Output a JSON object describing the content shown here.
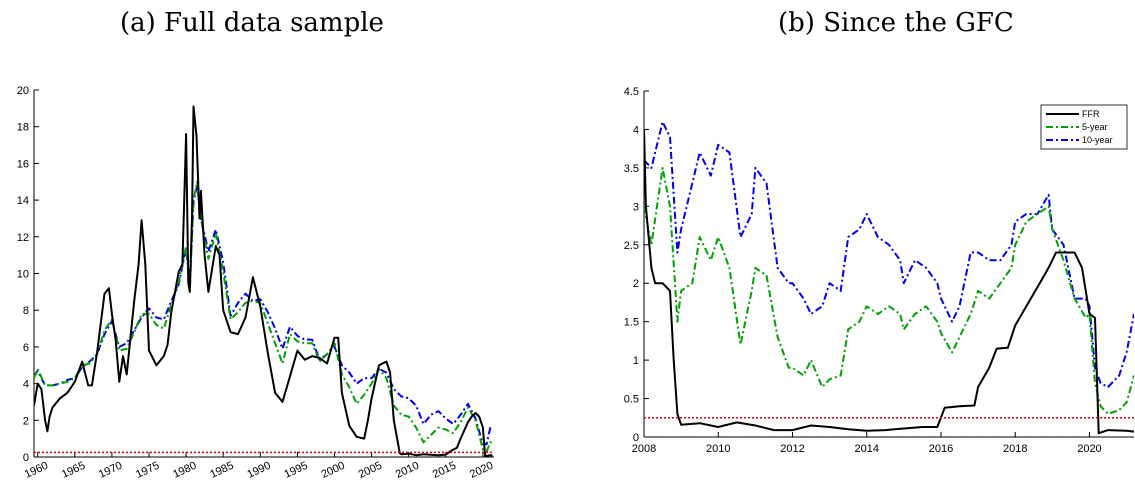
{
  "panels": {
    "a_title": "(a) Full data sample",
    "b_title": "(b) Since the GFC"
  },
  "colors": {
    "FFR": "#000000",
    "5-year": "#00a000",
    "10-year": "#0000ee",
    "reference": "#dd0000"
  },
  "chart_data": [
    {
      "type": "line",
      "title": "(a) Full data sample",
      "xlim": [
        1959.5,
        2021.5
      ],
      "ylim": [
        0,
        20
      ],
      "xticks": [
        1960,
        1965,
        1970,
        1975,
        1980,
        1985,
        1990,
        1995,
        2000,
        2005,
        2010,
        2015,
        2020
      ],
      "yticks": [
        0,
        2,
        4,
        6,
        8,
        10,
        12,
        14,
        16,
        18,
        20
      ],
      "reference_line": 0.25,
      "series": [
        {
          "name": "FFR",
          "style": "solid",
          "x": [
            1959.5,
            1960,
            1960.5,
            1961,
            1961.3,
            1961.6,
            1962,
            1963,
            1964,
            1965,
            1966,
            1966.8,
            1967.3,
            1968,
            1969,
            1969.6,
            1970,
            1970.5,
            1971,
            1971.5,
            1972,
            1973,
            1973.6,
            1974,
            1974.5,
            1975,
            1976,
            1977,
            1977.5,
            1978,
            1979,
            1979.5,
            1980,
            1980.3,
            1980.5,
            1980.8,
            1981,
            1981.4,
            1981.8,
            1982,
            1982.5,
            1983,
            1984,
            1984.5,
            1985,
            1986,
            1987,
            1988,
            1989,
            1989.5,
            1990,
            1991,
            1992,
            1993,
            1994,
            1995,
            1996,
            1997,
            1998,
            1999,
            2000,
            2000.5,
            2001,
            2002,
            2003,
            2004,
            2004.5,
            2005,
            2006,
            2007,
            2007.5,
            2008,
            2008.8,
            2009,
            2010,
            2011,
            2012,
            2013,
            2014,
            2015,
            2015.9,
            2016.5,
            2017,
            2018,
            2018.5,
            2019,
            2019.5,
            2020,
            2020.3,
            2021,
            2021.3
          ],
          "y": [
            2.8,
            4.0,
            3.7,
            2.0,
            1.4,
            2.2,
            2.7,
            3.2,
            3.5,
            4.1,
            5.2,
            3.9,
            3.9,
            5.7,
            8.9,
            9.2,
            7.8,
            6.4,
            4.1,
            5.5,
            4.5,
            8.5,
            10.5,
            12.9,
            10.5,
            5.8,
            5.0,
            5.5,
            6.1,
            7.9,
            10.1,
            10.5,
            17.6,
            9.5,
            9.0,
            13.0,
            19.1,
            17.5,
            13.0,
            14.5,
            11.0,
            9.0,
            11.5,
            11.0,
            8.0,
            6.8,
            6.7,
            7.6,
            9.8,
            9.0,
            8.2,
            5.7,
            3.5,
            3.0,
            4.4,
            5.8,
            5.3,
            5.5,
            5.4,
            5.1,
            6.5,
            6.5,
            3.5,
            1.7,
            1.1,
            1.0,
            2.0,
            3.2,
            5.0,
            5.2,
            4.6,
            2.0,
            0.2,
            0.15,
            0.18,
            0.1,
            0.15,
            0.12,
            0.09,
            0.13,
            0.38,
            0.5,
            1.0,
            1.9,
            2.2,
            2.4,
            2.2,
            1.6,
            0.05,
            0.1,
            0.08
          ]
        },
        {
          "name": "5-year",
          "style": "dashdot",
          "x": [
            1959.5,
            1960,
            1961,
            1962,
            1963,
            1964,
            1965,
            1966,
            1967,
            1968,
            1969,
            1970,
            1971,
            1972,
            1973,
            1974,
            1975,
            1976,
            1977,
            1978,
            1979,
            1980,
            1980.5,
            1981,
            1981.5,
            1982,
            1983,
            1984,
            1985,
            1986,
            1987,
            1988,
            1989,
            1990,
            1991,
            1992,
            1993,
            1994,
            1995,
            1996,
            1997,
            1998,
            1999,
            2000,
            2001,
            2002,
            2003,
            2004,
            2005,
            2006,
            2007,
            2008,
            2009,
            2010,
            2011,
            2012,
            2013,
            2014,
            2015,
            2016,
            2017,
            2018,
            2019,
            2020,
            2020.5,
            2021,
            2021.3
          ],
          "y": [
            4.3,
            4.8,
            3.9,
            3.9,
            4.0,
            4.1,
            4.3,
            5.0,
            5.1,
            5.6,
            6.9,
            7.5,
            5.8,
            5.9,
            6.8,
            7.8,
            7.8,
            7.2,
            7.0,
            8.3,
            9.5,
            11.5,
            9.0,
            14.0,
            15.0,
            13.0,
            10.8,
            12.2,
            10.1,
            7.5,
            7.9,
            8.4,
            8.5,
            8.4,
            7.3,
            6.2,
            5.1,
            6.7,
            6.3,
            6.2,
            6.2,
            5.2,
            5.6,
            6.2,
            4.5,
            3.8,
            2.9,
            3.4,
            4.0,
            4.8,
            4.3,
            2.8,
            2.3,
            2.2,
            1.6,
            0.8,
            1.2,
            1.6,
            1.5,
            1.3,
            1.9,
            2.7,
            2.0,
            0.4,
            0.3,
            0.8,
            0.8
          ]
        },
        {
          "name": "10-year",
          "style": "dashdot",
          "x": [
            1959.5,
            1960,
            1961,
            1962,
            1963,
            1964,
            1965,
            1966,
            1967,
            1968,
            1969,
            1970,
            1971,
            1972,
            1973,
            1974,
            1975,
            1976,
            1977,
            1978,
            1979,
            1980,
            1980.5,
            1981,
            1981.5,
            1982,
            1983,
            1984,
            1985,
            1986,
            1987,
            1988,
            1989,
            1990,
            1991,
            1992,
            1993,
            1994,
            1995,
            1996,
            1997,
            1998,
            1999,
            2000,
            2001,
            2002,
            2003,
            2004,
            2005,
            2006,
            2007,
            2008,
            2009,
            2010,
            2011,
            2012,
            2013,
            2014,
            2015,
            2016,
            2017,
            2018,
            2019,
            2020,
            2020.5,
            2021,
            2021.3
          ],
          "y": [
            4.4,
            4.7,
            3.9,
            3.9,
            4.0,
            4.2,
            4.3,
            4.9,
            5.2,
            5.6,
            6.7,
            7.4,
            6.0,
            6.2,
            6.9,
            7.6,
            8.1,
            7.6,
            7.5,
            8.5,
            9.4,
            11.4,
            9.5,
            13.9,
            14.8,
            13.0,
            11.2,
            12.4,
            10.6,
            7.7,
            8.4,
            8.9,
            8.5,
            8.6,
            7.9,
            7.0,
            5.9,
            7.1,
            6.6,
            6.4,
            6.4,
            5.3,
            5.6,
            6.0,
            5.0,
            4.6,
            4.0,
            4.3,
            4.3,
            4.8,
            4.6,
            3.7,
            3.3,
            3.2,
            2.8,
            1.8,
            2.3,
            2.5,
            2.1,
            1.8,
            2.3,
            2.9,
            2.1,
            0.7,
            0.7,
            1.6,
            1.6
          ]
        }
      ]
    },
    {
      "type": "line",
      "title": "(b) Since the GFC",
      "xlim": [
        2008,
        2021.2
      ],
      "ylim": [
        0,
        4.5
      ],
      "xticks": [
        2008,
        2010,
        2012,
        2014,
        2016,
        2018,
        2020
      ],
      "yticks": [
        0,
        0.5,
        1,
        1.5,
        2,
        2.5,
        3,
        3.5,
        4,
        4.5
      ],
      "reference_line": 0.25,
      "legend": "top-right",
      "series": [
        {
          "name": "FFR",
          "style": "solid",
          "x": [
            2008,
            2008.05,
            2008.2,
            2008.3,
            2008.5,
            2008.7,
            2008.8,
            2008.9,
            2009,
            2009.5,
            2010,
            2010.5,
            2011,
            2011.5,
            2012,
            2012.5,
            2013,
            2013.5,
            2014,
            2014.5,
            2015,
            2015.5,
            2015.9,
            2016.1,
            2016.5,
            2016.9,
            2017,
            2017.3,
            2017.5,
            2017.8,
            2018,
            2018.3,
            2018.6,
            2018.9,
            2019.1,
            2019.4,
            2019.6,
            2019.8,
            2020,
            2020.15,
            2020.25,
            2020.5,
            2021,
            2021.2
          ],
          "y": [
            4.0,
            3.0,
            2.2,
            2.0,
            2.0,
            1.9,
            1.0,
            0.3,
            0.16,
            0.18,
            0.13,
            0.19,
            0.15,
            0.09,
            0.09,
            0.15,
            0.13,
            0.1,
            0.08,
            0.09,
            0.11,
            0.13,
            0.13,
            0.38,
            0.4,
            0.41,
            0.65,
            0.9,
            1.15,
            1.16,
            1.45,
            1.7,
            1.95,
            2.2,
            2.4,
            2.4,
            2.4,
            2.2,
            1.6,
            1.55,
            0.05,
            0.09,
            0.08,
            0.07
          ]
        },
        {
          "name": "5-year",
          "style": "dashdot",
          "x": [
            2008,
            2008.2,
            2008.5,
            2008.7,
            2008.9,
            2009,
            2009.3,
            2009.5,
            2009.8,
            2010,
            2010.3,
            2010.6,
            2010.9,
            2011,
            2011.3,
            2011.6,
            2011.9,
            2012,
            2012.3,
            2012.5,
            2012.8,
            2013,
            2013.3,
            2013.5,
            2013.8,
            2014,
            2014.3,
            2014.6,
            2014.9,
            2015,
            2015.3,
            2015.6,
            2015.9,
            2016,
            2016.3,
            2016.5,
            2016.8,
            2017,
            2017.3,
            2017.6,
            2017.9,
            2018,
            2018.3,
            2018.6,
            2018.9,
            2019,
            2019.3,
            2019.6,
            2019.9,
            2020,
            2020.15,
            2020.3,
            2020.5,
            2020.8,
            2021,
            2021.2
          ],
          "y": [
            3.0,
            2.5,
            3.5,
            3.0,
            1.5,
            1.9,
            2.0,
            2.6,
            2.3,
            2.6,
            2.2,
            1.2,
            1.9,
            2.2,
            2.1,
            1.3,
            0.9,
            0.9,
            0.8,
            1.0,
            0.65,
            0.75,
            0.8,
            1.4,
            1.5,
            1.7,
            1.6,
            1.7,
            1.6,
            1.4,
            1.6,
            1.7,
            1.5,
            1.35,
            1.1,
            1.3,
            1.6,
            1.9,
            1.8,
            2.0,
            2.2,
            2.5,
            2.8,
            2.9,
            3.0,
            2.7,
            2.3,
            1.8,
            1.55,
            1.6,
            0.7,
            0.4,
            0.3,
            0.35,
            0.45,
            0.8
          ]
        },
        {
          "name": "10-year",
          "style": "dashdot",
          "x": [
            2008,
            2008.2,
            2008.5,
            2008.7,
            2008.9,
            2009,
            2009.3,
            2009.5,
            2009.8,
            2010,
            2010.3,
            2010.6,
            2010.9,
            2011,
            2011.3,
            2011.6,
            2011.9,
            2012,
            2012.3,
            2012.5,
            2012.8,
            2013,
            2013.3,
            2013.5,
            2013.8,
            2014,
            2014.3,
            2014.6,
            2014.9,
            2015,
            2015.3,
            2015.6,
            2015.9,
            2016,
            2016.3,
            2016.5,
            2016.8,
            2017,
            2017.3,
            2017.6,
            2017.9,
            2018,
            2018.3,
            2018.6,
            2018.9,
            2019,
            2019.3,
            2019.6,
            2019.9,
            2020,
            2020.15,
            2020.3,
            2020.5,
            2020.8,
            2021,
            2021.2
          ],
          "y": [
            3.6,
            3.5,
            4.1,
            3.9,
            2.4,
            2.7,
            3.3,
            3.7,
            3.4,
            3.8,
            3.7,
            2.6,
            2.9,
            3.5,
            3.3,
            2.2,
            2.0,
            2.0,
            1.8,
            1.6,
            1.7,
            2.0,
            1.9,
            2.6,
            2.7,
            2.9,
            2.6,
            2.5,
            2.3,
            2.0,
            2.3,
            2.2,
            2.0,
            1.8,
            1.5,
            1.7,
            2.4,
            2.4,
            2.3,
            2.3,
            2.5,
            2.8,
            2.9,
            2.9,
            3.15,
            2.7,
            2.5,
            1.8,
            1.8,
            1.7,
            0.9,
            0.7,
            0.65,
            0.8,
            1.1,
            1.6
          ]
        }
      ]
    }
  ]
}
